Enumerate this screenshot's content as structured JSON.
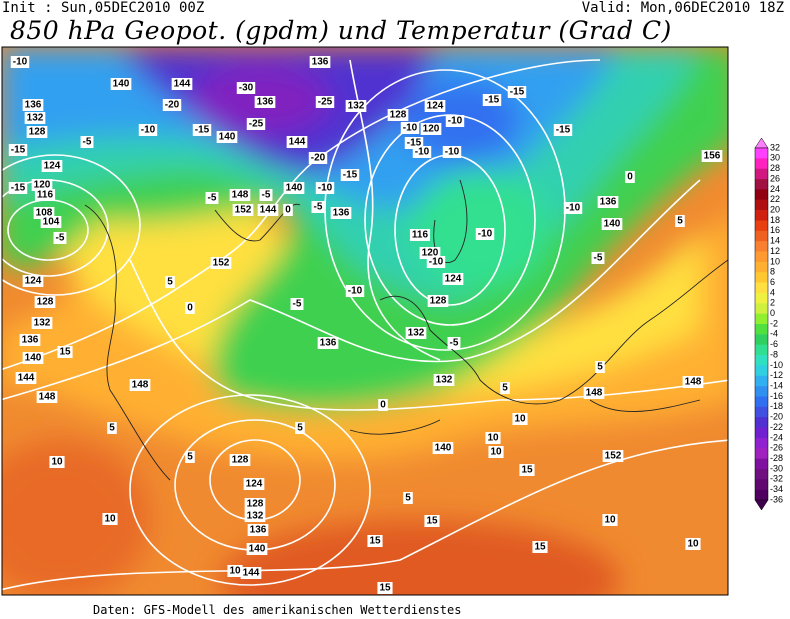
{
  "header": {
    "init": "Init : Sun,05DEC2010 00Z",
    "valid": "Valid: Mon,06DEC2010 18Z",
    "title": "850 hPa Geopot. (gpdm) und Temperatur (Grad C)"
  },
  "footer": "Daten: GFS-Modell des amerikanischen Wetterdienstes",
  "colorbar": {
    "levels": [
      "32",
      "30",
      "28",
      "26",
      "24",
      "22",
      "20",
      "18",
      "16",
      "14",
      "12",
      "10",
      "8",
      "6",
      "4",
      "2",
      "0",
      "-2",
      "-4",
      "-6",
      "-8",
      "-10",
      "-12",
      "-14",
      "-16",
      "-18",
      "-20",
      "-22",
      "-24",
      "-26",
      "-28",
      "-30",
      "-32",
      "-34",
      "-36"
    ],
    "colors": [
      "#ff40ff",
      "#ff20c0",
      "#d01880",
      "#a01040",
      "#900010",
      "#b01010",
      "#d02010",
      "#e84010",
      "#f06020",
      "#f88030",
      "#ff9a30",
      "#ffb030",
      "#ffc830",
      "#ffe040",
      "#f0f040",
      "#d0f040",
      "#90f030",
      "#50e040",
      "#30d060",
      "#30e090",
      "#30e0c0",
      "#30d0e0",
      "#30b0f0",
      "#3090f0",
      "#3070f0",
      "#4050e0",
      "#5030d0",
      "#7020d0",
      "#9020d0",
      "#a020c0",
      "#8010a0",
      "#701080",
      "#600870",
      "#500060"
    ]
  },
  "map": {
    "labels": [
      "-10",
      "140",
      "144",
      "136",
      "136",
      "-20",
      "-30",
      "136",
      "-25",
      "132",
      "128",
      "124",
      "-15",
      "-15",
      "132",
      "128",
      "-10",
      "-15",
      "-25",
      "140",
      "-15",
      "-5",
      "124",
      "144",
      "-20",
      "-15",
      "-10",
      "120",
      "-10",
      "-15",
      "-10",
      "-10",
      "-15",
      "156",
      "120",
      "116",
      "-15",
      "108",
      "104",
      "-5",
      "148",
      "-5",
      "140",
      "-10",
      "-5",
      "152",
      "144",
      "0",
      "-5",
      "136",
      "-10",
      "136",
      "140",
      "0",
      "116",
      "-10",
      "120",
      "-5",
      "-10",
      "124",
      "152",
      "124",
      "128",
      "5",
      "-10",
      "-5",
      "128",
      "0",
      "132",
      "136",
      "15",
      "132",
      "-5",
      "136",
      "140",
      "144",
      "148",
      "148",
      "0",
      "132",
      "5",
      "5",
      "148",
      "148",
      "5",
      "5",
      "5",
      "140",
      "10",
      "10",
      "10",
      "152",
      "10",
      "128",
      "124",
      "128",
      "132",
      "136",
      "140",
      "15",
      "5",
      "15",
      "10",
      "15",
      "15",
      "10",
      "10",
      "144",
      "10",
      "15",
      "5"
    ]
  }
}
